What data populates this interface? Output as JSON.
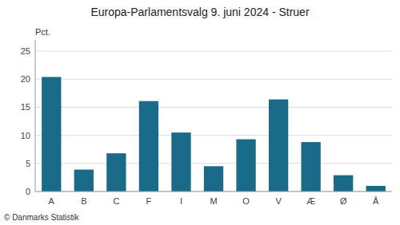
{
  "chart_data": {
    "type": "bar",
    "title": "Europa-Parlamentsvalg 9. juni 2024 - Struer",
    "categories": [
      "A",
      "B",
      "C",
      "F",
      "I",
      "M",
      "O",
      "V",
      "Æ",
      "Ø",
      "Å"
    ],
    "values": [
      20.4,
      3.9,
      6.8,
      16.1,
      10.5,
      4.5,
      9.3,
      16.4,
      8.8,
      2.9,
      1.0
    ],
    "color": "#1a6b8a",
    "ylabel": "Pct.",
    "ylim": [
      0,
      27
    ],
    "yticks": [
      0,
      5,
      10,
      15,
      20,
      25
    ],
    "grid": true,
    "annotations": [
      "© Danmarks Statistik"
    ]
  }
}
